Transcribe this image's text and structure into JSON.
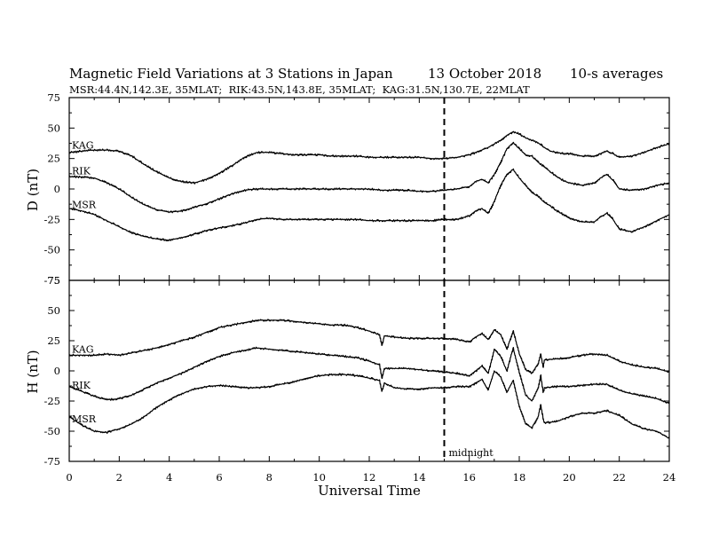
{
  "header": {
    "title": "Magnetic Field Variations at 3 Stations in Japan",
    "date": "13 October 2018",
    "averaging": "10-s averages",
    "stations_line": "MSR:44.4N,142.3E, 35MLAT;  RIK:43.5N,143.8E, 35MLAT;  KAG:31.5N,130.7E, 22MLAT"
  },
  "chart_data": [
    {
      "type": "line",
      "panel": "D",
      "ylabel": "D (nT)",
      "xlabel": "",
      "xlim": [
        0,
        24
      ],
      "ylim": [
        -75,
        75
      ],
      "xticks": [
        0,
        2,
        4,
        6,
        8,
        10,
        12,
        14,
        16,
        18,
        20,
        22,
        24
      ],
      "yticks": [
        -75,
        -50,
        -25,
        0,
        25,
        50,
        75
      ],
      "series": [
        {
          "name": "KAG",
          "x": [
            0,
            0.5,
            1,
            1.5,
            2,
            2.5,
            3,
            3.5,
            4,
            4.5,
            5,
            5.5,
            6,
            6.5,
            7,
            7.5,
            8,
            8.5,
            9,
            9.5,
            10,
            10.5,
            11,
            11.5,
            12,
            12.5,
            13,
            13.5,
            14,
            14.5,
            15,
            15.5,
            16,
            16.25,
            16.5,
            16.75,
            17,
            17.25,
            17.5,
            17.75,
            18,
            18.25,
            18.5,
            18.75,
            19,
            19.25,
            19.5,
            19.75,
            20,
            20.5,
            21,
            21.25,
            21.5,
            21.75,
            22,
            22.5,
            23,
            23.5,
            24
          ],
          "values": [
            30,
            31,
            32,
            32,
            31,
            27,
            20,
            14,
            9,
            6,
            5,
            8,
            13,
            19,
            26,
            30,
            30,
            29,
            28,
            28,
            28,
            27,
            27,
            27,
            26,
            26,
            26,
            26,
            26,
            25,
            25,
            26,
            28,
            30,
            32,
            34,
            37,
            40,
            44,
            47,
            45,
            42,
            40,
            38,
            34,
            31,
            30,
            29,
            29,
            27,
            27,
            29,
            31,
            29,
            26,
            27,
            30,
            34,
            37
          ]
        },
        {
          "name": "RIK",
          "x": [
            0,
            0.5,
            1,
            1.5,
            2,
            2.5,
            3,
            3.5,
            4,
            4.5,
            5,
            5.5,
            6,
            6.5,
            7,
            7.5,
            8,
            8.5,
            9,
            9.5,
            10,
            10.5,
            11,
            11.5,
            12,
            12.5,
            13,
            13.5,
            14,
            14.5,
            15,
            15.5,
            16,
            16.25,
            16.5,
            16.75,
            17,
            17.25,
            17.5,
            17.75,
            18,
            18.25,
            18.5,
            18.75,
            19,
            19.25,
            19.5,
            19.75,
            20,
            20.5,
            21,
            21.25,
            21.5,
            21.75,
            22,
            22.5,
            23,
            23.5,
            24
          ],
          "values": [
            10,
            10,
            9,
            5,
            0,
            -7,
            -13,
            -17,
            -19,
            -18,
            -15,
            -12,
            -8,
            -4,
            -1,
            0,
            0,
            0,
            0,
            0,
            0,
            0,
            0,
            0,
            0,
            -1,
            -1,
            -1,
            -2,
            -2,
            -1,
            0,
            2,
            6,
            8,
            5,
            12,
            22,
            33,
            38,
            33,
            28,
            27,
            22,
            18,
            14,
            10,
            7,
            5,
            3,
            5,
            9,
            12,
            7,
            0,
            -1,
            0,
            3,
            5
          ]
        },
        {
          "name": "MSR",
          "x": [
            0,
            0.5,
            1,
            1.5,
            2,
            2.5,
            3,
            3.5,
            4,
            4.5,
            5,
            5.5,
            6,
            6.5,
            7,
            7.5,
            8,
            8.5,
            9,
            9.5,
            10,
            10.5,
            11,
            11.5,
            12,
            12.5,
            13,
            13.5,
            14,
            14.5,
            15,
            15.5,
            16,
            16.25,
            16.5,
            16.75,
            17,
            17.25,
            17.5,
            17.75,
            18,
            18.25,
            18.5,
            18.75,
            19,
            19.25,
            19.5,
            19.75,
            20,
            20.5,
            21,
            21.25,
            21.5,
            21.75,
            22,
            22.5,
            23,
            23.5,
            24
          ],
          "values": [
            -16,
            -18,
            -21,
            -26,
            -31,
            -36,
            -39,
            -41,
            -42,
            -40,
            -37,
            -34,
            -32,
            -30,
            -28,
            -25,
            -24,
            -25,
            -25,
            -25,
            -25,
            -25,
            -25,
            -25,
            -26,
            -26,
            -26,
            -26,
            -26,
            -26,
            -25,
            -25,
            -22,
            -18,
            -16,
            -20,
            -10,
            3,
            12,
            16,
            9,
            3,
            -3,
            -6,
            -11,
            -14,
            -18,
            -21,
            -24,
            -27,
            -27,
            -23,
            -20,
            -25,
            -33,
            -35,
            -31,
            -26,
            -21
          ]
        }
      ]
    },
    {
      "type": "line",
      "panel": "H",
      "ylabel": "H (nT)",
      "xlabel": "Universal Time",
      "xlim": [
        0,
        24
      ],
      "ylim": [
        -75,
        75
      ],
      "xticks": [
        0,
        2,
        4,
        6,
        8,
        10,
        12,
        14,
        16,
        18,
        20,
        22,
        24
      ],
      "yticks": [
        -75,
        -50,
        -25,
        0,
        25,
        50,
        75
      ],
      "annotations": [
        {
          "text": "midnight",
          "x": 15
        }
      ],
      "series": [
        {
          "name": "KAG",
          "x": [
            0,
            0.5,
            1,
            1.5,
            2,
            2.5,
            3,
            3.5,
            4,
            4.5,
            5,
            5.5,
            6,
            6.5,
            7,
            7.5,
            8,
            8.5,
            9,
            9.5,
            10,
            10.5,
            11,
            11.5,
            12,
            12.4,
            12.5,
            12.6,
            13,
            13.5,
            14,
            14.5,
            15,
            15.5,
            16,
            16.25,
            16.5,
            16.75,
            17,
            17.25,
            17.5,
            17.75,
            18,
            18.25,
            18.5,
            18.75,
            18.85,
            18.95,
            19,
            19.5,
            20,
            20.5,
            21,
            21.5,
            22,
            22.5,
            23,
            23.5,
            24
          ],
          "values": [
            13,
            13,
            13,
            14,
            13,
            15,
            17,
            19,
            22,
            25,
            28,
            32,
            36,
            38,
            40,
            42,
            42,
            42,
            41,
            40,
            39,
            38,
            38,
            36,
            33,
            30,
            21,
            29,
            28,
            27,
            27,
            27,
            27,
            26,
            24,
            28,
            31,
            26,
            34,
            30,
            18,
            33,
            14,
            1,
            -2,
            6,
            14,
            3,
            9,
            10,
            11,
            13,
            14,
            13,
            8,
            5,
            3,
            2,
            -1
          ]
        },
        {
          "name": "RIK",
          "x": [
            0,
            0.5,
            1,
            1.5,
            2,
            2.5,
            3,
            3.5,
            4,
            4.5,
            5,
            5.5,
            6,
            6.5,
            7,
            7.5,
            8,
            8.5,
            9,
            9.5,
            10,
            10.5,
            11,
            11.5,
            12,
            12.4,
            12.5,
            12.6,
            13,
            13.5,
            14,
            14.5,
            15,
            15.5,
            16,
            16.25,
            16.5,
            16.75,
            17,
            17.25,
            17.5,
            17.75,
            18,
            18.25,
            18.5,
            18.75,
            18.85,
            18.95,
            19,
            19.5,
            20,
            20.5,
            21,
            21.5,
            22,
            22.5,
            23,
            23.5,
            24
          ],
          "values": [
            -13,
            -17,
            -21,
            -24,
            -23,
            -20,
            -15,
            -10,
            -6,
            -2,
            3,
            8,
            12,
            15,
            17,
            19,
            18,
            17,
            16,
            15,
            14,
            13,
            12,
            11,
            8,
            5,
            -6,
            2,
            2,
            2,
            1,
            0,
            -1,
            -2,
            -4,
            0,
            4,
            -2,
            18,
            12,
            0,
            19,
            -2,
            -20,
            -25,
            -14,
            -4,
            -18,
            -14,
            -13,
            -13,
            -12,
            -11,
            -11,
            -16,
            -19,
            -21,
            -23,
            -27
          ]
        },
        {
          "name": "MSR",
          "x": [
            0,
            0.5,
            1,
            1.5,
            2,
            2.5,
            3,
            3.5,
            4,
            4.5,
            5,
            5.5,
            6,
            6.5,
            7,
            7.5,
            8,
            8.5,
            9,
            9.5,
            10,
            10.5,
            11,
            11.5,
            12,
            12.4,
            12.5,
            12.6,
            13,
            13.5,
            14,
            14.5,
            15,
            15.5,
            16,
            16.25,
            16.5,
            16.75,
            17,
            17.25,
            17.5,
            17.75,
            18,
            18.25,
            18.5,
            18.75,
            18.85,
            18.95,
            19,
            19.5,
            20,
            20.5,
            21,
            21.5,
            22,
            22.5,
            23,
            23.5,
            24
          ],
          "values": [
            -38,
            -45,
            -50,
            -51,
            -48,
            -44,
            -38,
            -30,
            -24,
            -19,
            -15,
            -13,
            -12,
            -13,
            -14,
            -14,
            -13,
            -11,
            -9,
            -6,
            -4,
            -3,
            -3,
            -4,
            -6,
            -8,
            -17,
            -10,
            -14,
            -15,
            -15,
            -14,
            -14,
            -13,
            -13,
            -10,
            -7,
            -16,
            0,
            -5,
            -18,
            -8,
            -30,
            -44,
            -47,
            -38,
            -28,
            -40,
            -43,
            -42,
            -38,
            -35,
            -35,
            -33,
            -37,
            -44,
            -48,
            -50,
            -56
          ]
        }
      ]
    }
  ]
}
